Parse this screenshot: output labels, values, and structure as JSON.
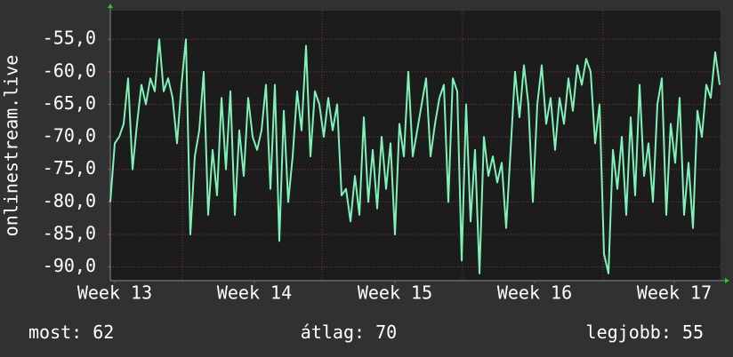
{
  "chart_data": {
    "type": "line",
    "ylabel": "onlinestream.live",
    "color": "#7ff2b8",
    "x": [
      0,
      1,
      2,
      3,
      4,
      5,
      6,
      7,
      8,
      9,
      10,
      11,
      12,
      13,
      14,
      15,
      16,
      17,
      18,
      19,
      20,
      21,
      22,
      23,
      24,
      25,
      26,
      27,
      28,
      29,
      30,
      31,
      32,
      33,
      34,
      35,
      36,
      37,
      38,
      39,
      40,
      41,
      42,
      43,
      44,
      45,
      46,
      47,
      48,
      49,
      50,
      51,
      52,
      53,
      54,
      55,
      56,
      57,
      58,
      59,
      60,
      61,
      62,
      63,
      64,
      65,
      66,
      67,
      68,
      69,
      70,
      71,
      72,
      73,
      74,
      75,
      76,
      77,
      78,
      79,
      80,
      81,
      82,
      83,
      84,
      85,
      86,
      87,
      88,
      89,
      90,
      91,
      92,
      93,
      94,
      95,
      96,
      97,
      98,
      99,
      100,
      101,
      102,
      103,
      104,
      105,
      106,
      107,
      108,
      109,
      110,
      111,
      112,
      113,
      114,
      115,
      116,
      117,
      118,
      119,
      120,
      121,
      122,
      123,
      124,
      125,
      126,
      127,
      128,
      129,
      130,
      131,
      132,
      133,
      134,
      135,
      136,
      137
    ],
    "values": [
      -80,
      -71,
      -70,
      -68,
      -61,
      -75,
      -68,
      -62,
      -65,
      -61,
      -63,
      -55,
      -63,
      -61,
      -64,
      -71,
      -62,
      -55,
      -85,
      -73,
      -69,
      -60,
      -82,
      -72,
      -79,
      -64,
      -75,
      -63,
      -82,
      -69,
      -76,
      -64,
      -70,
      -72,
      -69,
      -62,
      -78,
      -62,
      -86,
      -66,
      -80,
      -73,
      -63,
      -69,
      -56,
      -73,
      -63,
      -65,
      -70,
      -64,
      -69,
      -65,
      -79,
      -78,
      -83,
      -76,
      -82,
      -67,
      -80,
      -72,
      -81,
      -70,
      -78,
      -71,
      -85,
      -68,
      -73,
      -60,
      -73,
      -69,
      -65,
      -61,
      -73,
      -68,
      -64,
      -62,
      -80,
      -61,
      -63,
      -89,
      -65,
      -83,
      -72,
      -91,
      -70,
      -76,
      -73,
      -77,
      -74,
      -84,
      -72,
      -60,
      -67,
      -59,
      -65,
      -80,
      -65,
      -59,
      -68,
      -64,
      -72,
      -64,
      -68,
      -61,
      -66,
      -59,
      -62,
      -58,
      -60,
      -71,
      -65,
      -88,
      -91,
      -72,
      -78,
      -70,
      -82,
      -67,
      -79,
      -62,
      -76,
      -71,
      -80,
      -65,
      -61,
      -82,
      -68,
      -74,
      -64,
      -82,
      -74,
      -84,
      -66,
      -70,
      -62,
      -64,
      -57,
      -62
    ],
    "xlim": [
      0,
      137.2
    ],
    "xticks": [
      {
        "value": 1,
        "label": "Week 13"
      },
      {
        "value": 32.4,
        "label": "Week 14"
      },
      {
        "value": 64,
        "label": "Week 15"
      },
      {
        "value": 95.4,
        "label": "Week 16"
      },
      {
        "value": 126.8,
        "label": "Week 17"
      }
    ],
    "x_major_grid": [
      16.2,
      47.6,
      79.2,
      110.8
    ],
    "ylim": [
      -92.1,
      -50.6
    ],
    "yticks": [
      {
        "value": -55,
        "label": "-55,0"
      },
      {
        "value": -60,
        "label": "-60,0"
      },
      {
        "value": -65,
        "label": "-65,0"
      },
      {
        "value": -70,
        "label": "-70,0"
      },
      {
        "value": -75,
        "label": "-75,0"
      },
      {
        "value": -80,
        "label": "-80,0"
      },
      {
        "value": -85,
        "label": "-85,0"
      },
      {
        "value": -90,
        "label": "-90,0"
      }
    ],
    "grid": true,
    "stats": [
      {
        "label": "most:",
        "value": 62
      },
      {
        "label": "átlag:",
        "value": 70
      },
      {
        "label": "legjobb:",
        "value": 55
      }
    ]
  }
}
